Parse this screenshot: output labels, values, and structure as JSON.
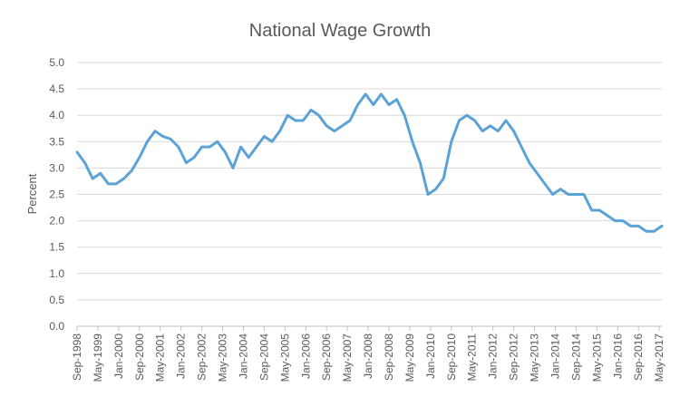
{
  "chart_data": {
    "type": "line",
    "title": "National Wage Growth",
    "ylabel": "Percent",
    "x": [
      "Sep-1998",
      "Dec-1998",
      "Mar-1999",
      "Jun-1999",
      "Sep-1999",
      "Dec-1999",
      "Mar-2000",
      "Jun-2000",
      "Sep-2000",
      "Dec-2000",
      "Mar-2001",
      "Jun-2001",
      "Sep-2001",
      "Dec-2001",
      "Mar-2002",
      "Jun-2002",
      "Sep-2002",
      "Dec-2002",
      "Mar-2003",
      "Jun-2003",
      "Sep-2003",
      "Dec-2003",
      "Mar-2004",
      "Jun-2004",
      "Sep-2004",
      "Dec-2004",
      "Mar-2005",
      "Jun-2005",
      "Sep-2005",
      "Dec-2005",
      "Mar-2006",
      "Jun-2006",
      "Sep-2006",
      "Dec-2006",
      "Mar-2007",
      "Jun-2007",
      "Sep-2007",
      "Dec-2007",
      "Mar-2008",
      "Jun-2008",
      "Sep-2008",
      "Dec-2008",
      "Mar-2009",
      "Jun-2009",
      "Sep-2009",
      "Dec-2009",
      "Mar-2010",
      "Jun-2010",
      "Sep-2010",
      "Dec-2010",
      "Mar-2011",
      "Jun-2011",
      "Sep-2011",
      "Dec-2011",
      "Mar-2012",
      "Jun-2012",
      "Sep-2012",
      "Dec-2012",
      "Mar-2013",
      "Jun-2013",
      "Sep-2013",
      "Dec-2013",
      "Mar-2014",
      "Jun-2014",
      "Sep-2014",
      "Dec-2014",
      "Mar-2015",
      "Jun-2015",
      "Sep-2015",
      "Dec-2015",
      "Mar-2016",
      "Jun-2016",
      "Sep-2016",
      "Dec-2016",
      "Mar-2017",
      "Jun-2017"
    ],
    "series": [
      {
        "name": "National Wage Growth",
        "color": "#5ba3d6",
        "values": [
          3.3,
          3.1,
          2.8,
          2.9,
          2.7,
          2.7,
          2.8,
          2.95,
          3.2,
          3.5,
          3.7,
          3.6,
          3.55,
          3.4,
          3.1,
          3.2,
          3.4,
          3.4,
          3.5,
          3.3,
          3.0,
          3.4,
          3.2,
          3.4,
          3.6,
          3.5,
          3.7,
          4.0,
          3.9,
          3.9,
          4.1,
          4.0,
          3.8,
          3.7,
          3.8,
          3.9,
          4.2,
          4.4,
          4.2,
          4.4,
          4.2,
          4.3,
          4.0,
          3.5,
          3.1,
          2.5,
          2.6,
          2.8,
          3.5,
          3.9,
          4.0,
          3.9,
          3.7,
          3.8,
          3.7,
          3.9,
          3.7,
          3.4,
          3.1,
          2.9,
          2.7,
          2.5,
          2.6,
          2.5,
          2.5,
          2.5,
          2.2,
          2.2,
          2.1,
          2.0,
          2.0,
          1.9,
          1.9,
          1.8,
          1.8,
          1.9
        ]
      }
    ],
    "xlim": [
      "Sep-1998",
      "Jun-2017"
    ],
    "xticks": [
      "Sep-1998",
      "May-1999",
      "Jan-2000",
      "Sep-2000",
      "May-2001",
      "Jan-2002",
      "Sep-2002",
      "May-2003",
      "Jan-2004",
      "Sep-2004",
      "May-2005",
      "Jan-2006",
      "Sep-2006",
      "May-2007",
      "Jan-2008",
      "Sep-2008",
      "May-2009",
      "Jan-2010",
      "Sep-2010",
      "May-2011",
      "Jan-2012",
      "Sep-2012",
      "May-2013",
      "Jan-2014",
      "Sep-2014",
      "May-2015",
      "Jan-2016",
      "Sep-2016",
      "May-2017"
    ],
    "ylim": [
      0,
      5
    ],
    "yticks": [
      {
        "value": 0,
        "label": "0.0"
      },
      0.5,
      {
        "value": 1,
        "label": "1.0"
      },
      1.5,
      {
        "value": 2,
        "label": "2.0"
      },
      2.5,
      {
        "value": 3,
        "label": "3.0"
      },
      3.5,
      {
        "value": 4,
        "label": "4.0"
      },
      4.5,
      {
        "value": 5,
        "label": "5.0"
      }
    ],
    "grid": true
  }
}
